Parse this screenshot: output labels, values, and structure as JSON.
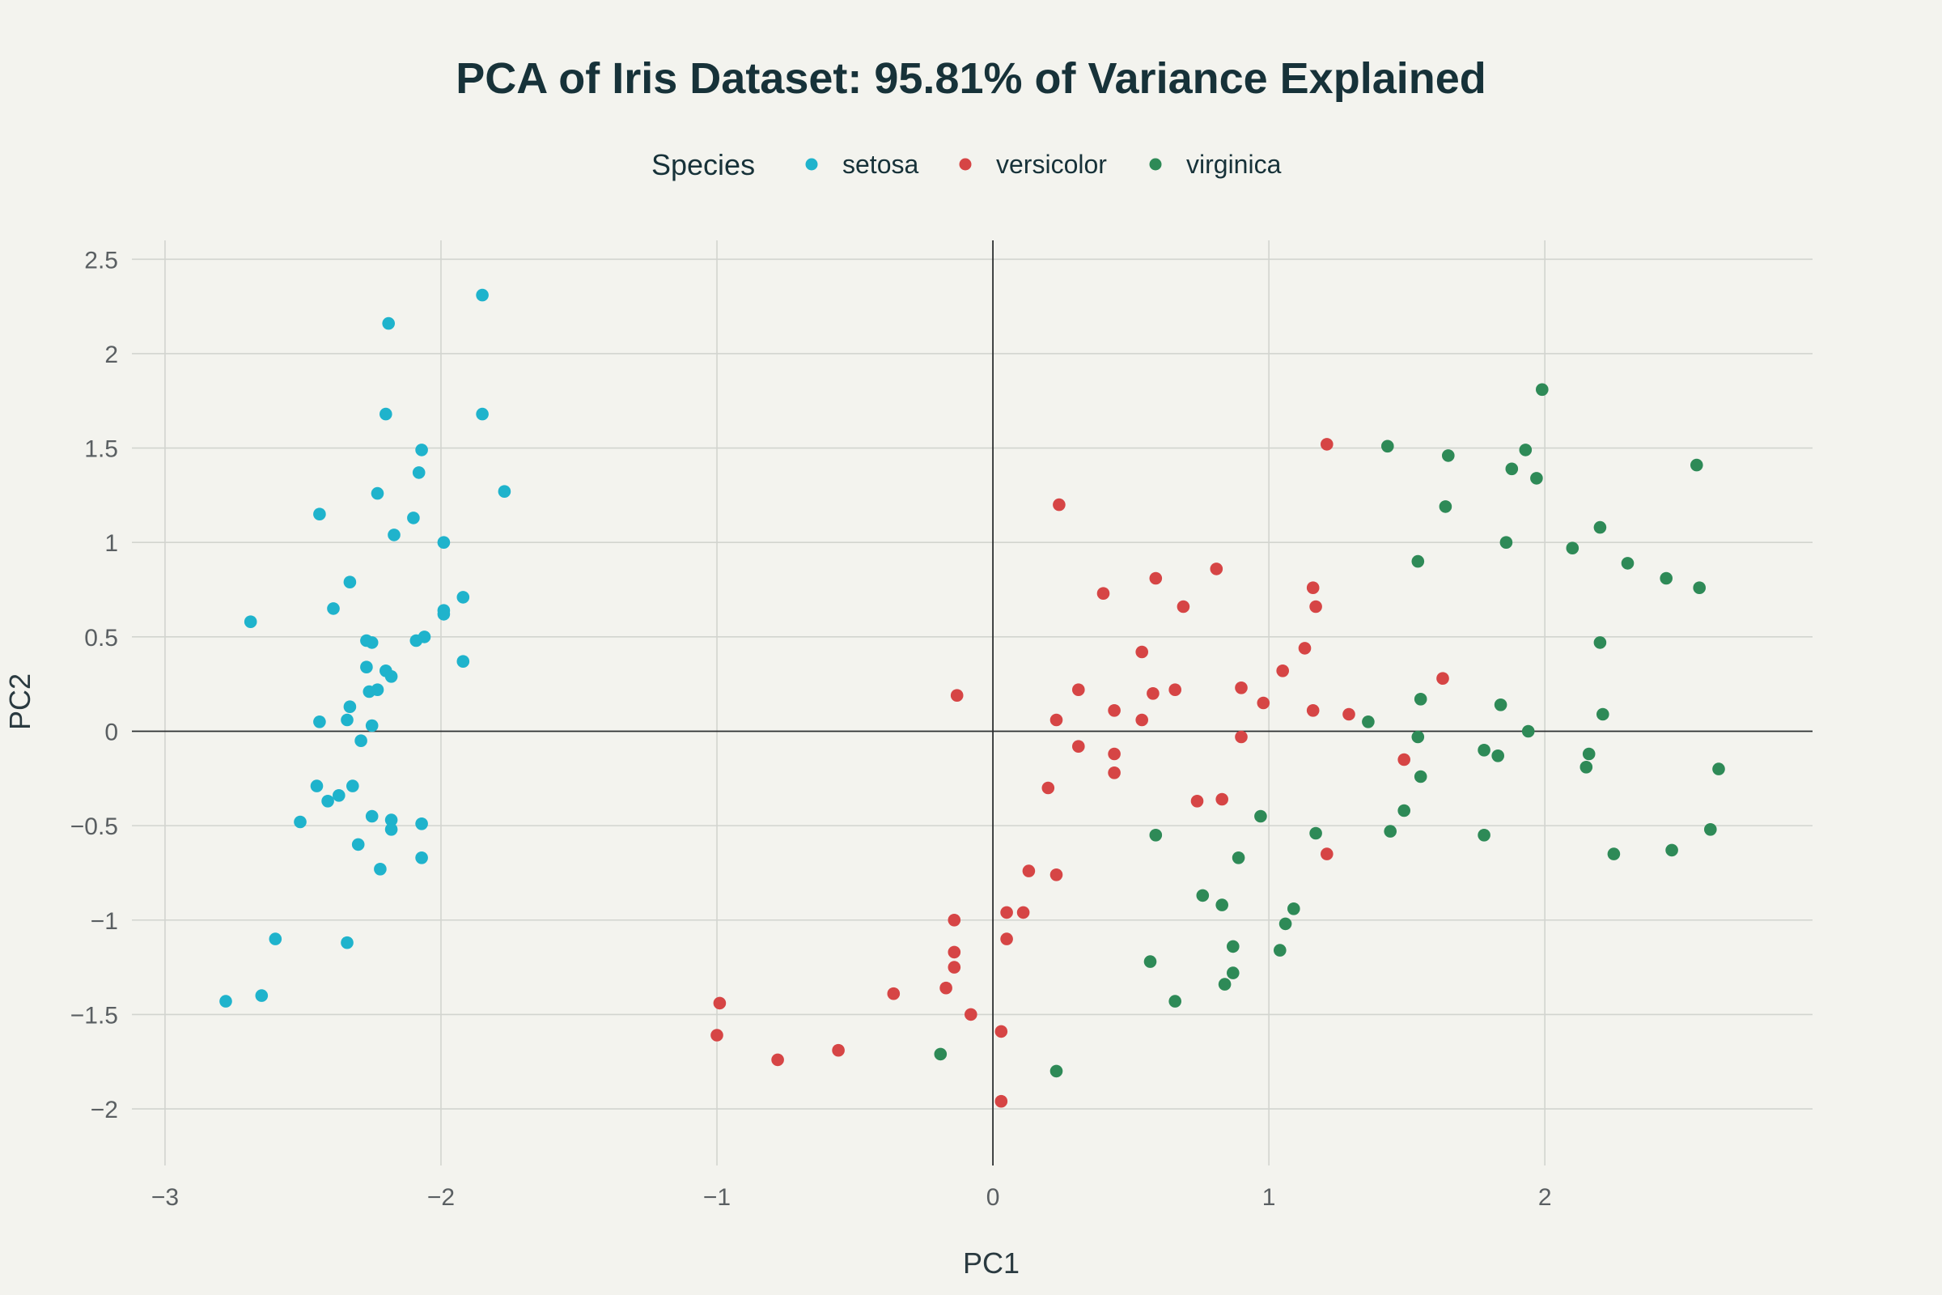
{
  "chart_data": {
    "type": "scatter",
    "title": "PCA of Iris Dataset: 95.81% of Variance Explained",
    "xlabel": "PC1",
    "ylabel": "PC2",
    "xlim": [
      -3.12,
      2.97
    ],
    "ylim": [
      -2.3,
      2.6
    ],
    "x_ticks": [
      -3,
      -2,
      -1,
      0,
      1,
      2
    ],
    "x_tick_labels": [
      "−3",
      "−2",
      "−1",
      "0",
      "1",
      "2"
    ],
    "y_ticks": [
      -2,
      -1.5,
      -1,
      -0.5,
      0,
      0.5,
      1,
      1.5,
      2,
      2.5
    ],
    "y_tick_labels": [
      "−2",
      "−1.5",
      "−1",
      "−0.5",
      "0",
      "0.5",
      "1",
      "1.5",
      "2",
      "2.5"
    ],
    "grid": true,
    "legend": {
      "title": "Species",
      "placement": "top-center"
    },
    "series": [
      {
        "name": "setosa",
        "color": "#1fb3cc",
        "points": [
          [
            -1.85,
            2.31
          ],
          [
            -2.19,
            2.16
          ],
          [
            -2.2,
            1.68
          ],
          [
            -1.85,
            1.68
          ],
          [
            -2.07,
            1.49
          ],
          [
            -2.08,
            1.37
          ],
          [
            -1.77,
            1.27
          ],
          [
            -2.23,
            1.26
          ],
          [
            -2.44,
            1.15
          ],
          [
            -2.1,
            1.13
          ],
          [
            -2.17,
            1.04
          ],
          [
            -1.99,
            1.0
          ],
          [
            -2.33,
            0.79
          ],
          [
            -1.92,
            0.71
          ],
          [
            -2.39,
            0.65
          ],
          [
            -1.99,
            0.64
          ],
          [
            -1.99,
            0.62
          ],
          [
            -2.69,
            0.58
          ],
          [
            -2.06,
            0.5
          ],
          [
            -2.27,
            0.48
          ],
          [
            -2.25,
            0.47
          ],
          [
            -2.09,
            0.48
          ],
          [
            -1.92,
            0.37
          ],
          [
            -2.27,
            0.34
          ],
          [
            -2.2,
            0.32
          ],
          [
            -2.18,
            0.29
          ],
          [
            -2.23,
            0.22
          ],
          [
            -2.26,
            0.21
          ],
          [
            -2.33,
            0.13
          ],
          [
            -2.44,
            0.05
          ],
          [
            -2.34,
            0.06
          ],
          [
            -2.25,
            0.03
          ],
          [
            -2.29,
            -0.05
          ],
          [
            -2.45,
            -0.29
          ],
          [
            -2.32,
            -0.29
          ],
          [
            -2.37,
            -0.34
          ],
          [
            -2.41,
            -0.37
          ],
          [
            -2.51,
            -0.48
          ],
          [
            -2.25,
            -0.45
          ],
          [
            -2.18,
            -0.47
          ],
          [
            -2.07,
            -0.49
          ],
          [
            -2.18,
            -0.52
          ],
          [
            -2.3,
            -0.6
          ],
          [
            -2.07,
            -0.67
          ],
          [
            -2.22,
            -0.73
          ],
          [
            -2.6,
            -1.1
          ],
          [
            -2.34,
            -1.12
          ],
          [
            -2.65,
            -1.4
          ],
          [
            -2.78,
            -1.43
          ]
        ]
      },
      {
        "name": "versicolor",
        "color": "#d64545",
        "points": [
          [
            1.21,
            1.52
          ],
          [
            0.24,
            1.2
          ],
          [
            0.81,
            0.86
          ],
          [
            0.59,
            0.81
          ],
          [
            0.4,
            0.73
          ],
          [
            1.16,
            0.76
          ],
          [
            0.69,
            0.66
          ],
          [
            1.17,
            0.66
          ],
          [
            1.13,
            0.44
          ],
          [
            0.54,
            0.42
          ],
          [
            1.63,
            0.28
          ],
          [
            1.05,
            0.32
          ],
          [
            0.31,
            0.22
          ],
          [
            0.66,
            0.22
          ],
          [
            0.9,
            0.23
          ],
          [
            0.58,
            0.2
          ],
          [
            -0.13,
            0.19
          ],
          [
            0.98,
            0.15
          ],
          [
            0.44,
            0.11
          ],
          [
            1.16,
            0.11
          ],
          [
            1.29,
            0.09
          ],
          [
            0.23,
            0.06
          ],
          [
            0.54,
            0.06
          ],
          [
            0.9,
            -0.03
          ],
          [
            0.31,
            -0.08
          ],
          [
            0.44,
            -0.12
          ],
          [
            1.49,
            -0.15
          ],
          [
            0.44,
            -0.22
          ],
          [
            0.2,
            -0.3
          ],
          [
            0.74,
            -0.37
          ],
          [
            0.83,
            -0.36
          ],
          [
            1.21,
            -0.65
          ],
          [
            0.13,
            -0.74
          ],
          [
            0.23,
            -0.76
          ],
          [
            0.05,
            -0.96
          ],
          [
            0.11,
            -0.96
          ],
          [
            -0.14,
            -1.0
          ],
          [
            0.05,
            -1.1
          ],
          [
            -0.14,
            -1.17
          ],
          [
            -0.14,
            -1.25
          ],
          [
            -0.36,
            -1.39
          ],
          [
            -0.17,
            -1.36
          ],
          [
            -0.99,
            -1.44
          ],
          [
            -0.08,
            -1.5
          ],
          [
            -1.0,
            -1.61
          ],
          [
            0.03,
            -1.59
          ],
          [
            -0.78,
            -1.74
          ],
          [
            -0.56,
            -1.69
          ],
          [
            0.03,
            -1.96
          ]
        ]
      },
      {
        "name": "virginica",
        "color": "#2e8a57",
        "points": [
          [
            1.99,
            1.81
          ],
          [
            1.43,
            1.51
          ],
          [
            1.93,
            1.49
          ],
          [
            1.65,
            1.46
          ],
          [
            2.55,
            1.41
          ],
          [
            1.88,
            1.39
          ],
          [
            1.97,
            1.34
          ],
          [
            1.64,
            1.19
          ],
          [
            2.2,
            1.08
          ],
          [
            1.86,
            1.0
          ],
          [
            2.1,
            0.97
          ],
          [
            1.54,
            0.9
          ],
          [
            2.3,
            0.89
          ],
          [
            2.44,
            0.81
          ],
          [
            2.56,
            0.76
          ],
          [
            2.2,
            0.47
          ],
          [
            1.55,
            0.17
          ],
          [
            1.84,
            0.14
          ],
          [
            2.21,
            0.09
          ],
          [
            1.36,
            0.05
          ],
          [
            1.94,
            0.0
          ],
          [
            1.54,
            -0.03
          ],
          [
            1.78,
            -0.1
          ],
          [
            1.83,
            -0.13
          ],
          [
            2.16,
            -0.12
          ],
          [
            2.15,
            -0.19
          ],
          [
            2.63,
            -0.2
          ],
          [
            1.55,
            -0.24
          ],
          [
            1.49,
            -0.42
          ],
          [
            0.97,
            -0.45
          ],
          [
            1.44,
            -0.53
          ],
          [
            1.17,
            -0.54
          ],
          [
            0.59,
            -0.55
          ],
          [
            1.78,
            -0.55
          ],
          [
            2.6,
            -0.52
          ],
          [
            2.46,
            -0.63
          ],
          [
            2.25,
            -0.65
          ],
          [
            0.89,
            -0.67
          ],
          [
            0.76,
            -0.87
          ],
          [
            0.83,
            -0.92
          ],
          [
            1.09,
            -0.94
          ],
          [
            1.06,
            -1.02
          ],
          [
            0.87,
            -1.14
          ],
          [
            1.04,
            -1.16
          ],
          [
            0.57,
            -1.22
          ],
          [
            0.87,
            -1.28
          ],
          [
            0.84,
            -1.34
          ],
          [
            0.66,
            -1.43
          ],
          [
            -0.19,
            -1.71
          ],
          [
            0.23,
            -1.8
          ]
        ]
      }
    ]
  }
}
